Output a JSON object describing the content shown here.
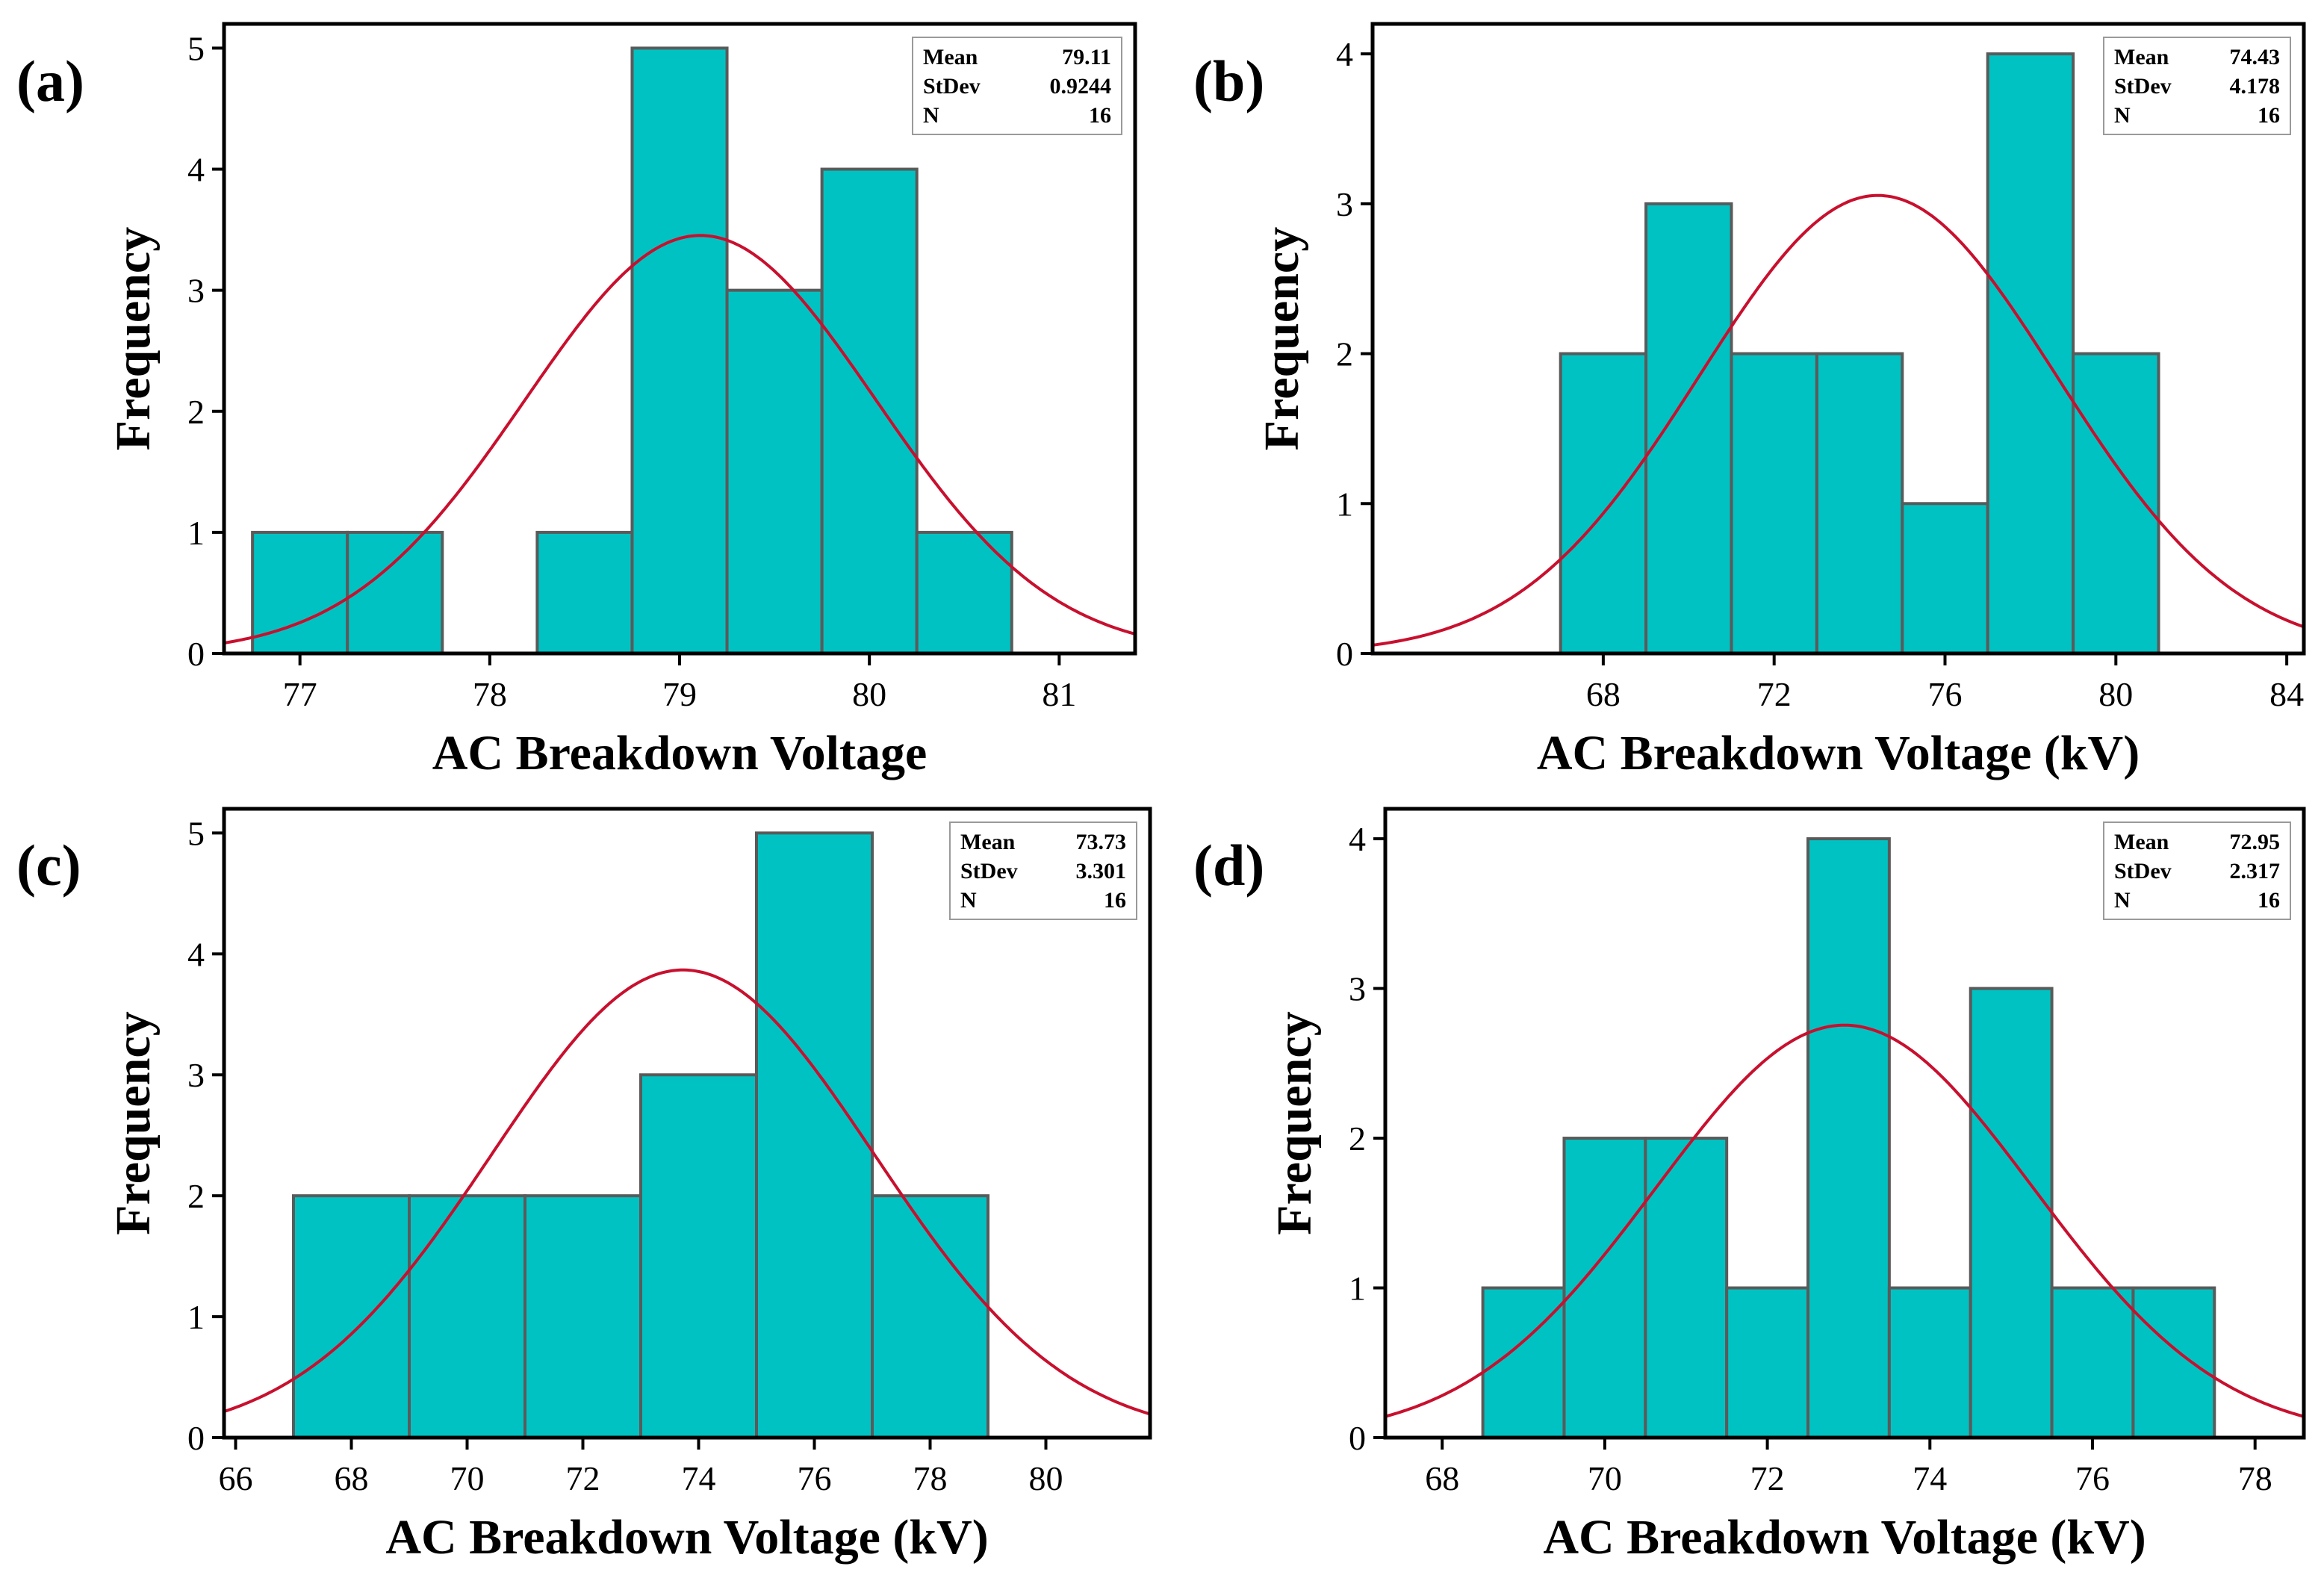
{
  "chart_data": [
    {
      "type": "bar",
      "panel_label": "(a)",
      "xlabel": "AC Breakdown Voltage",
      "ylabel": "Frequency",
      "xlim": [
        76.6,
        81.4
      ],
      "ylim": [
        0,
        5.2
      ],
      "xticks": [
        77,
        78,
        79,
        80,
        81
      ],
      "yticks": [
        0,
        1,
        2,
        3,
        4,
        5
      ],
      "bin_width": 0.5,
      "bins": [
        {
          "x0": 76.75,
          "x1": 77.25,
          "value": 1
        },
        {
          "x0": 77.25,
          "x1": 77.75,
          "value": 1
        },
        {
          "x0": 78.25,
          "x1": 78.75,
          "value": 1
        },
        {
          "x0": 78.75,
          "x1": 79.25,
          "value": 5
        },
        {
          "x0": 79.25,
          "x1": 79.75,
          "value": 3
        },
        {
          "x0": 79.75,
          "x1": 80.25,
          "value": 4
        },
        {
          "x0": 80.25,
          "x1": 80.75,
          "value": 1
        }
      ],
      "fit": {
        "mean": 79.11,
        "stdev": 0.9244,
        "n": 16
      },
      "stats": [
        {
          "label": "Mean",
          "value": "79.11"
        },
        {
          "label": "StDev",
          "value": "0.9244"
        },
        {
          "label": "N",
          "value": "16"
        }
      ],
      "grid": false,
      "legend": "stats box top-right"
    },
    {
      "type": "bar",
      "panel_label": "(b)",
      "xlabel": "AC Breakdown Voltage (kV)",
      "ylabel": "Frequency",
      "xlim": [
        62.6,
        84.4
      ],
      "ylim": [
        0,
        4.2
      ],
      "xticks": [
        68,
        72,
        76,
        80,
        84
      ],
      "yticks": [
        0,
        1,
        2,
        3,
        4
      ],
      "bin_width": 2,
      "bins": [
        {
          "x0": 67,
          "x1": 69,
          "value": 2
        },
        {
          "x0": 69,
          "x1": 71,
          "value": 3
        },
        {
          "x0": 71,
          "x1": 73,
          "value": 2
        },
        {
          "x0": 73,
          "x1": 75,
          "value": 2
        },
        {
          "x0": 75,
          "x1": 77,
          "value": 1
        },
        {
          "x0": 77,
          "x1": 79,
          "value": 4
        },
        {
          "x0": 79,
          "x1": 81,
          "value": 2
        }
      ],
      "fit": {
        "mean": 74.43,
        "stdev": 4.178,
        "n": 16
      },
      "stats": [
        {
          "label": "Mean",
          "value": "74.43"
        },
        {
          "label": "StDev",
          "value": "4.178"
        },
        {
          "label": "N",
          "value": "16"
        }
      ],
      "grid": false,
      "legend": "stats box top-right"
    },
    {
      "type": "bar",
      "panel_label": "(c)",
      "xlabel": "AC Breakdown Voltage (kV)",
      "ylabel": "Frequency",
      "xlim": [
        65.8,
        81.8
      ],
      "ylim": [
        0,
        5.2
      ],
      "xticks": [
        66,
        68,
        70,
        72,
        74,
        76,
        78,
        80
      ],
      "yticks": [
        0,
        1,
        2,
        3,
        4,
        5
      ],
      "bin_width": 2,
      "bins": [
        {
          "x0": 67,
          "x1": 69,
          "value": 2
        },
        {
          "x0": 69,
          "x1": 71,
          "value": 2
        },
        {
          "x0": 71,
          "x1": 73,
          "value": 2
        },
        {
          "x0": 73,
          "x1": 75,
          "value": 3
        },
        {
          "x0": 75,
          "x1": 77,
          "value": 5
        },
        {
          "x0": 77,
          "x1": 79,
          "value": 2
        }
      ],
      "fit": {
        "mean": 73.73,
        "stdev": 3.301,
        "n": 16
      },
      "stats": [
        {
          "label": "Mean",
          "value": "73.73"
        },
        {
          "label": "StDev",
          "value": "3.301"
        },
        {
          "label": "N",
          "value": "16"
        }
      ],
      "grid": false,
      "legend": "stats box top-right"
    },
    {
      "type": "bar",
      "panel_label": "(d)",
      "xlabel": "AC Breakdown Voltage (kV)",
      "ylabel": "Frequency",
      "xlim": [
        67.3,
        78.6
      ],
      "ylim": [
        0,
        4.2
      ],
      "xticks": [
        68,
        70,
        72,
        74,
        76,
        78
      ],
      "yticks": [
        0,
        1,
        2,
        3,
        4
      ],
      "bin_width": 1,
      "bins": [
        {
          "x0": 68.5,
          "x1": 69.5,
          "value": 1
        },
        {
          "x0": 69.5,
          "x1": 70.5,
          "value": 2
        },
        {
          "x0": 70.5,
          "x1": 71.5,
          "value": 2
        },
        {
          "x0": 71.5,
          "x1": 72.5,
          "value": 1
        },
        {
          "x0": 72.5,
          "x1": 73.5,
          "value": 4
        },
        {
          "x0": 73.5,
          "x1": 74.5,
          "value": 1
        },
        {
          "x0": 74.5,
          "x1": 75.5,
          "value": 3
        },
        {
          "x0": 75.5,
          "x1": 76.5,
          "value": 1
        },
        {
          "x0": 76.5,
          "x1": 77.5,
          "value": 1
        }
      ],
      "fit": {
        "mean": 72.95,
        "stdev": 2.317,
        "n": 16
      },
      "stats": [
        {
          "label": "Mean",
          "value": "72.95"
        },
        {
          "label": "StDev",
          "value": "2.317"
        },
        {
          "label": "N",
          "value": "16"
        }
      ],
      "grid": false,
      "legend": "stats box top-right"
    }
  ],
  "colors": {
    "bar_fill": "#00c2c2",
    "bar_edge": "#5a5a5a",
    "fit_curve": "#c8102e",
    "axis": "#000000"
  }
}
